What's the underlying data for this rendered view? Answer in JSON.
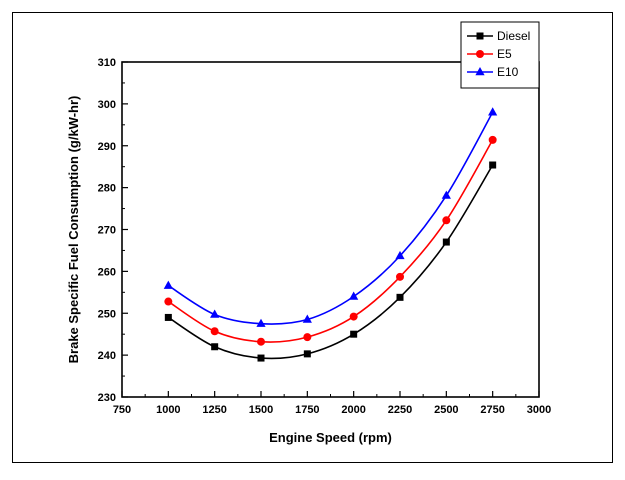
{
  "chart_data": {
    "type": "line",
    "xlabel": "Engine Speed (rpm)",
    "ylabel": "Brake Specific Fuel Consumption (g/kW-hr)",
    "xlim": [
      750,
      3000
    ],
    "ylim": [
      230,
      310
    ],
    "xticks": [
      750,
      1000,
      1250,
      1500,
      1750,
      2000,
      2250,
      2500,
      2750,
      3000
    ],
    "yticks": [
      230,
      240,
      250,
      260,
      270,
      280,
      290,
      300,
      310
    ],
    "x": [
      1000,
      1250,
      1500,
      1750,
      2000,
      2250,
      2500,
      2750
    ],
    "series": [
      {
        "name": "Diesel",
        "color": "#000000",
        "marker": "square",
        "values": [
          249.0,
          242.0,
          239.3,
          240.3,
          245.0,
          253.8,
          267.0,
          285.4
        ]
      },
      {
        "name": "E5",
        "color": "#ff0000",
        "marker": "circle",
        "values": [
          252.8,
          245.7,
          243.2,
          244.3,
          249.2,
          258.7,
          272.2,
          291.4
        ]
      },
      {
        "name": "E10",
        "color": "#0000ff",
        "marker": "triangle",
        "values": [
          256.6,
          249.7,
          247.5,
          248.5,
          254.0,
          263.7,
          278.1,
          298.0
        ]
      }
    ],
    "legend_position": "top-right",
    "grid": false
  }
}
